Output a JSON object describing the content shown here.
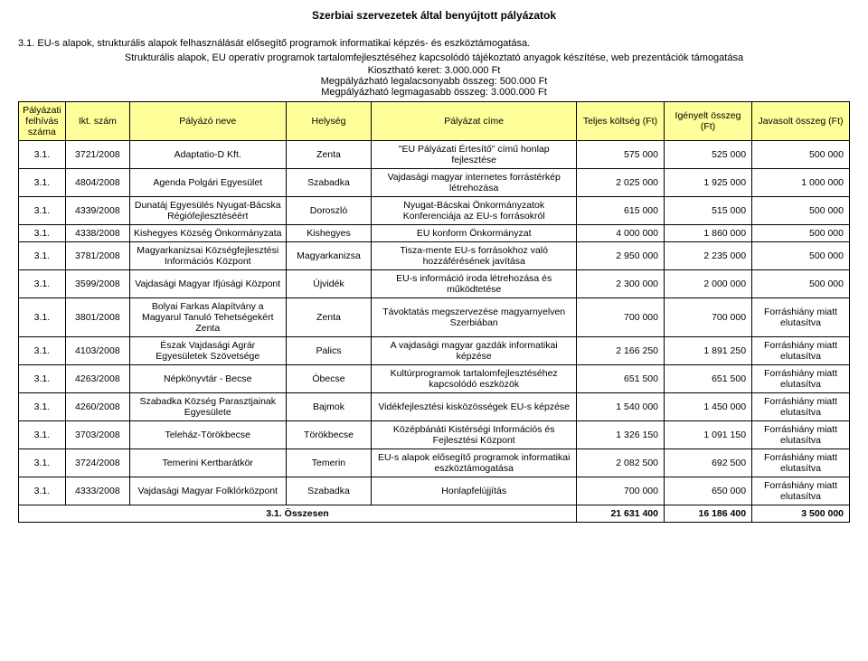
{
  "page_title": "Szerbiai szervezetek által benyújtott pályázatok",
  "section": {
    "heading": "3.1. EU-s alapok, strukturális alapok felhasználását elősegítő programok informatikai képzés- és eszköztámogatása.",
    "description": "Strukturális alapok, EU operatív programok tartalomfejlesztéséhez kapcsolódó tájékoztató anyagok készítése, web prezentációk támogatása",
    "meta": {
      "keret": "Kiosztható keret: 3.000.000 Ft",
      "min": "Megpályázható legalacsonyabb összeg: 500.000 Ft",
      "max": "Megpályázható legmagasabb összeg: 3.000.000 Ft"
    }
  },
  "table": {
    "headers": {
      "c1": "Pályázati felhívás száma",
      "c2": "Ikt. szám",
      "c3": "Pályázó neve",
      "c4": "Helység",
      "c5": "Pályázat címe",
      "c6": "Teljes költség (Ft)",
      "c7": "Igényelt összeg (Ft)",
      "c8": "Javasolt összeg (Ft)"
    },
    "rows": [
      {
        "c1": "3.1.",
        "c2": "3721/2008",
        "c3": "Adaptatio-D Kft.",
        "c4": "Zenta",
        "c5": "\"EU Pályázati Értesítő\" című honlap fejlesztése",
        "c6": "575 000",
        "c7": "525 000",
        "c8": "500 000"
      },
      {
        "c1": "3.1.",
        "c2": "4804/2008",
        "c3": "Agenda Polgári Egyesület",
        "c4": "Szabadka",
        "c5": "Vajdasági magyar internetes forrástérkép létrehozása",
        "c6": "2 025 000",
        "c7": "1 925 000",
        "c8": "1 000 000"
      },
      {
        "c1": "3.1.",
        "c2": "4339/2008",
        "c3": "Dunatáj Egyesülés Nyugat-Bácska Régiófejlesztéséért",
        "c4": "Doroszló",
        "c5": "Nyugat-Bácskai Önkormányzatok Konferenciája az EU-s forrásokról",
        "c6": "615 000",
        "c7": "515 000",
        "c8": "500 000"
      },
      {
        "c1": "3.1.",
        "c2": "4338/2008",
        "c3": "Kishegyes Község Önkormányzata",
        "c4": "Kishegyes",
        "c5": "EU konform Önkormányzat",
        "c6": "4 000 000",
        "c7": "1 860 000",
        "c8": "500 000"
      },
      {
        "c1": "3.1.",
        "c2": "3781/2008",
        "c3": "Magyarkanizsai Községfejlesztési Információs Központ",
        "c4": "Magyarkanizsa",
        "c5": "Tisza-mente EU-s forrásokhoz való hozzáférésének javítása",
        "c6": "2 950 000",
        "c7": "2 235 000",
        "c8": "500 000"
      },
      {
        "c1": "3.1.",
        "c2": "3599/2008",
        "c3": "Vajdasági Magyar Ifjúsági Központ",
        "c4": "Újvidék",
        "c5": "EU-s információ iroda létrehozása és működtetése",
        "c6": "2 300 000",
        "c7": "2 000 000",
        "c8": "500 000"
      },
      {
        "c1": "3.1.",
        "c2": "3801/2008",
        "c3": "Bolyai Farkas Alapítvány a Magyarul Tanuló Tehetségekért Zenta",
        "c4": "Zenta",
        "c5": "Távoktatás megszervezése magyarnyelven Szerbiában",
        "c6": "700 000",
        "c7": "700 000",
        "c8": "Forráshiány miatt elutasítva"
      },
      {
        "c1": "3.1.",
        "c2": "4103/2008",
        "c3": "Észak Vajdasági Agrár Egyesületek Szövetsége",
        "c4": "Palics",
        "c5": "A vajdasági magyar gazdák informatikai képzése",
        "c6": "2 166 250",
        "c7": "1 891 250",
        "c8": "Forráshiány miatt elutasítva"
      },
      {
        "c1": "3.1.",
        "c2": "4263/2008",
        "c3": "Népkönyvtár - Becse",
        "c4": "Óbecse",
        "c5": "Kultúrprogramok tartalomfejlesztéséhez kapcsolódó eszközök",
        "c6": "651 500",
        "c7": "651 500",
        "c8": "Forráshiány miatt elutasítva"
      },
      {
        "c1": "3.1.",
        "c2": "4260/2008",
        "c3": "Szabadka Község Parasztjainak Egyesülete",
        "c4": "Bajmok",
        "c5": "Vidékfejlesztési kisközösségek EU-s képzése",
        "c6": "1 540 000",
        "c7": "1 450 000",
        "c8": "Forráshiány miatt elutasítva"
      },
      {
        "c1": "3.1.",
        "c2": "3703/2008",
        "c3": "Teleház-Törökbecse",
        "c4": "Törökbecse",
        "c5": "Középbánáti Kistérségi Információs és Fejlesztési Központ",
        "c6": "1 326 150",
        "c7": "1 091 150",
        "c8": "Forráshiány miatt elutasítva"
      },
      {
        "c1": "3.1.",
        "c2": "3724/2008",
        "c3": "Temerini Kertbarátkör",
        "c4": "Temerin",
        "c5": "EU-s alapok elősegítő programok informatikai eszköztámogatása",
        "c6": "2 082 500",
        "c7": "692 500",
        "c8": "Forráshiány miatt elutasítva"
      },
      {
        "c1": "3.1.",
        "c2": "4333/2008",
        "c3": "Vajdasági Magyar Folklórközpont",
        "c4": "Szabadka",
        "c5": "Honlapfelújjítás",
        "c6": "700 000",
        "c7": "650 000",
        "c8": "Forráshiány miatt elutasítva"
      }
    ],
    "sum": {
      "label": "3.1. Összesen",
      "c6": "21 631 400",
      "c7": "16 186 400",
      "c8": "3 500 000"
    }
  },
  "colors": {
    "header_bg": "#ffff99",
    "border": "#000000",
    "background": "#ffffff",
    "text": "#000000"
  }
}
